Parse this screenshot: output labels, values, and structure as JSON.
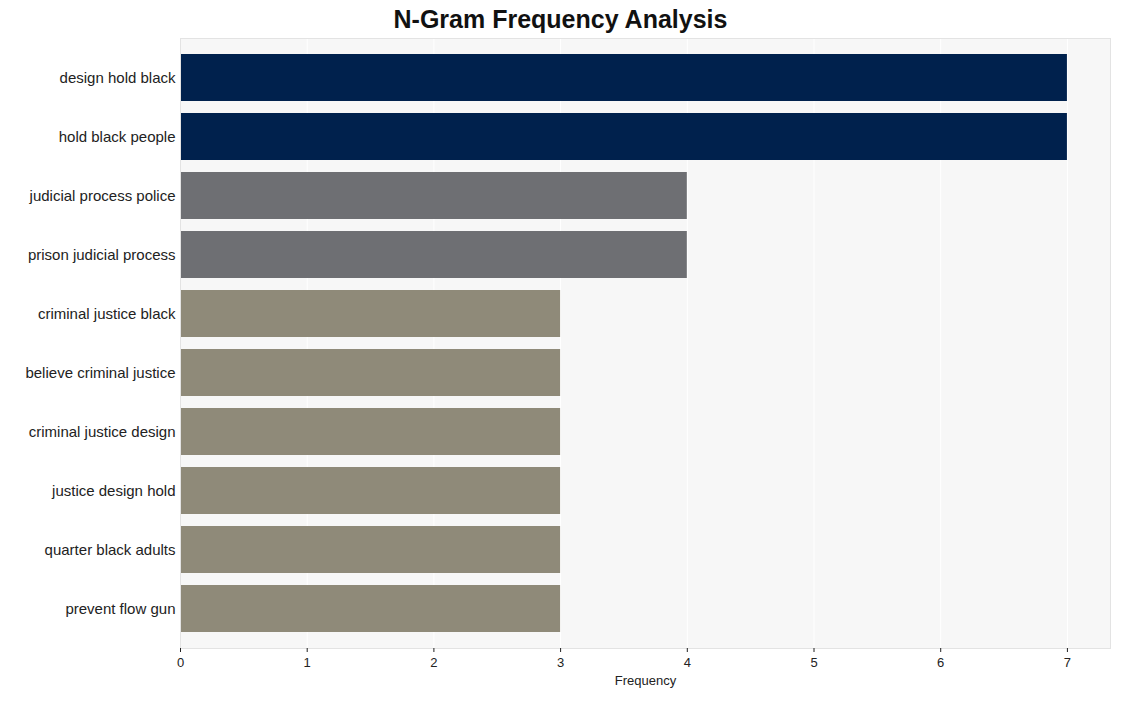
{
  "chart_data": {
    "type": "bar",
    "orientation": "horizontal",
    "title": "N-Gram Frequency Analysis",
    "x_label": "Frequency",
    "categories": [
      "design hold black",
      "hold black people",
      "judicial process police",
      "prison judicial process",
      "criminal justice black",
      "believe criminal justice",
      "criminal justice design",
      "justice design hold",
      "quarter black adults",
      "prevent flow gun"
    ],
    "values": [
      7,
      7,
      4,
      4,
      3,
      3,
      3,
      3,
      3,
      3
    ],
    "colors": [
      "#00214d",
      "#00214d",
      "#6e6f73",
      "#6e6f73",
      "#8f8a79",
      "#8f8a79",
      "#8f8a79",
      "#8f8a79",
      "#8f8a79",
      "#8f8a79"
    ],
    "xlim": [
      0,
      7.34
    ],
    "xticks": [
      0,
      1,
      2,
      3,
      4,
      5,
      6,
      7
    ],
    "grid": true
  }
}
